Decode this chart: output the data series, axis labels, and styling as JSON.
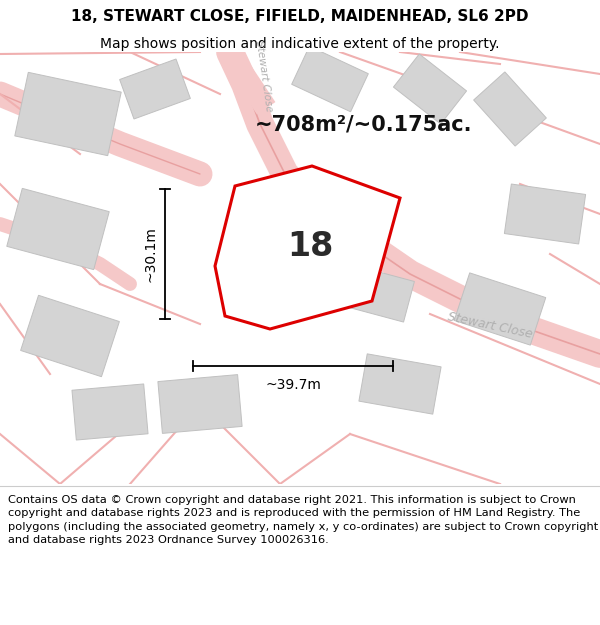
{
  "title_line1": "18, STEWART CLOSE, FIFIELD, MAIDENHEAD, SL6 2PD",
  "title_line2": "Map shows position and indicative extent of the property.",
  "area_text": "~708m²/~0.175ac.",
  "label_number": "18",
  "dim_width_text": "~39.7m",
  "dim_height_text": "~30.1m",
  "footer_text": "Contains OS data © Crown copyright and database right 2021. This information is subject to Crown copyright and database rights 2023 and is reproduced with the permission of HM Land Registry. The polygons (including the associated geometry, namely x, y co-ordinates) are subject to Crown copyright and database rights 2023 Ordnance Survey 100026316.",
  "map_bg": "#f5f5f5",
  "building_color": "#d4d4d4",
  "building_edge": "#c0c0c0",
  "road_fill": "#f5c8c8",
  "road_edge": "#e8a0a0",
  "plot_edge": "#dd0000",
  "dim_line_color": "#000000",
  "road_text_color": "#b0b0b0",
  "title_fontsize": 11,
  "subtitle_fontsize": 10,
  "footer_fontsize": 8.2,
  "area_fontsize": 15,
  "label_fontsize": 24,
  "dim_fontsize": 10,
  "road_label_fontsize": 9
}
